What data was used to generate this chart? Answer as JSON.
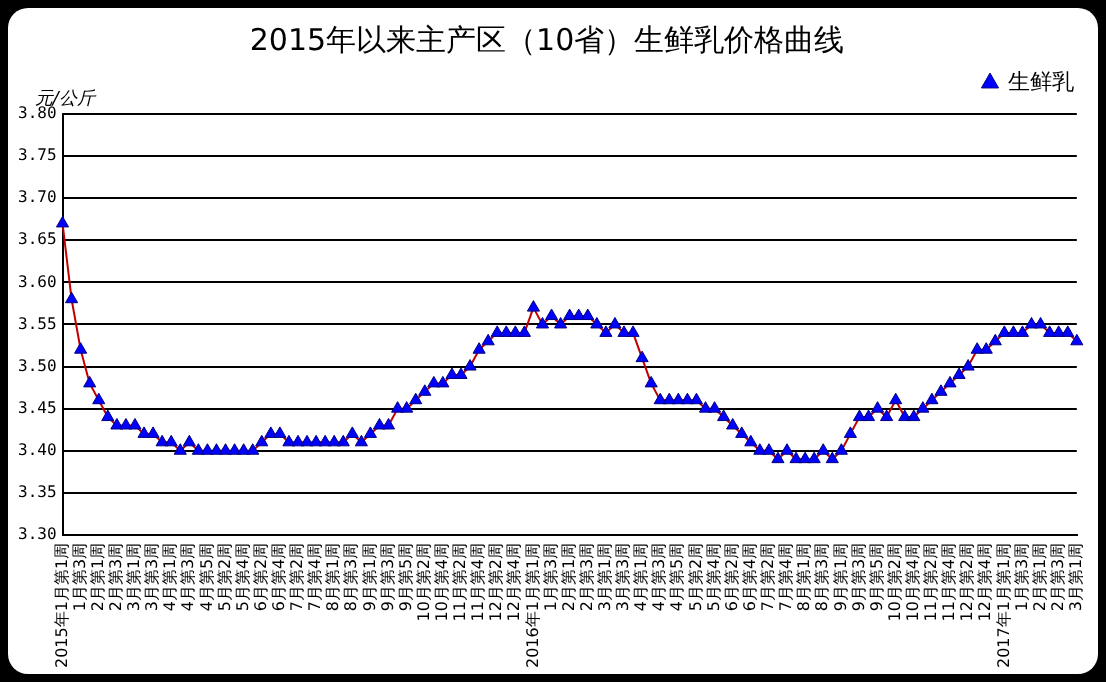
{
  "chart_data": {
    "type": "line",
    "title": "2015年以来主产区（10省）生鲜乳价格曲线",
    "ylabel": "元/公斤",
    "categories": [
      "2015年1月第1周",
      null,
      "1月第3周",
      null,
      "2月第1周",
      null,
      "2月第3周",
      null,
      "3月第1周",
      null,
      "3月第3周",
      null,
      "4月第1周",
      null,
      "4月第3周",
      null,
      "4月第5周",
      null,
      "5月第2周",
      null,
      "5月第4周",
      null,
      "6月第2周",
      null,
      "6月第4周",
      null,
      "7月第2周",
      null,
      "7月第4周",
      null,
      "8月第1周",
      null,
      "8月第3周",
      null,
      "9月第1周",
      null,
      "9月第3周",
      null,
      "9月第5周",
      null,
      "10月第2周",
      null,
      "10月第4周",
      null,
      "11月第2周",
      null,
      "11月第4周",
      null,
      "12月第2周",
      null,
      "12月第4周",
      null,
      "2016年1月第1周",
      null,
      "1月第3周",
      null,
      "2月第1周",
      null,
      "2月第3周",
      null,
      "3月第1周",
      null,
      "3月第3周",
      null,
      "4月第1周",
      null,
      "4月第3周",
      null,
      "4月第5周",
      null,
      "5月第2周",
      null,
      "5月第4周",
      null,
      "6月第2周",
      null,
      "6月第4周",
      null,
      "7月第2周",
      null,
      "7月第4周",
      null,
      "8月第1周",
      null,
      "8月第3周",
      null,
      "9月第1周",
      null,
      "9月第3周",
      null,
      "9月第5周",
      null,
      "10月第2周",
      null,
      "10月第4周",
      null,
      "11月第2周",
      null,
      "11月第4周",
      null,
      "12月第2周",
      null,
      "12月第4周",
      null,
      "2017年1月第1周",
      null,
      "1月第3周",
      null,
      "2月第1周",
      null,
      "2月第3周",
      null,
      "3月第1周"
    ],
    "series": [
      {
        "name": "生鲜乳",
        "color": "#0000ff",
        "values": [
          3.67,
          3.58,
          3.52,
          3.48,
          3.46,
          3.44,
          3.43,
          3.43,
          3.43,
          3.42,
          3.42,
          3.41,
          3.41,
          3.4,
          3.41,
          3.4,
          3.4,
          3.4,
          3.4,
          3.4,
          3.4,
          3.4,
          3.41,
          3.42,
          3.42,
          3.41,
          3.41,
          3.41,
          3.41,
          3.41,
          3.41,
          3.41,
          3.42,
          3.41,
          3.42,
          3.43,
          3.43,
          3.45,
          3.45,
          3.46,
          3.47,
          3.48,
          3.48,
          3.49,
          3.49,
          3.5,
          3.52,
          3.53,
          3.54,
          3.54,
          3.54,
          3.54,
          3.57,
          3.55,
          3.56,
          3.55,
          3.56,
          3.56,
          3.56,
          3.55,
          3.54,
          3.55,
          3.54,
          3.54,
          3.51,
          3.48,
          3.46,
          3.46,
          3.46,
          3.46,
          3.46,
          3.45,
          3.45,
          3.44,
          3.43,
          3.42,
          3.41,
          3.4,
          3.4,
          3.39,
          3.4,
          3.39,
          3.39,
          3.39,
          3.4,
          3.39,
          3.4,
          3.42,
          3.44,
          3.44,
          3.45,
          3.44,
          3.46,
          3.44,
          3.44,
          3.45,
          3.46,
          3.47,
          3.48,
          3.49,
          3.5,
          3.52,
          3.52,
          3.53,
          3.54,
          3.54,
          3.54,
          3.55,
          3.55,
          3.54,
          3.54,
          3.54,
          3.53
        ]
      }
    ],
    "ylim": [
      3.3,
      3.8
    ],
    "yticks": [
      {
        "value": 3.3,
        "label": "3.30"
      },
      {
        "value": 3.35,
        "label": "3.35"
      },
      {
        "value": 3.4,
        "label": "3.40"
      },
      {
        "value": 3.45,
        "label": "3.45"
      },
      {
        "value": 3.5,
        "label": "3.50"
      },
      {
        "value": 3.55,
        "label": "3.55"
      },
      {
        "value": 3.6,
        "label": "3.60"
      },
      {
        "value": 3.65,
        "label": "3.65"
      },
      {
        "value": 3.7,
        "label": "3.70"
      },
      {
        "value": 3.75,
        "label": "3.75"
      },
      {
        "value": 3.8,
        "label": "3.80"
      }
    ],
    "grid": "y",
    "legend": "top right",
    "marker": "triangle",
    "line_style": "solid"
  }
}
